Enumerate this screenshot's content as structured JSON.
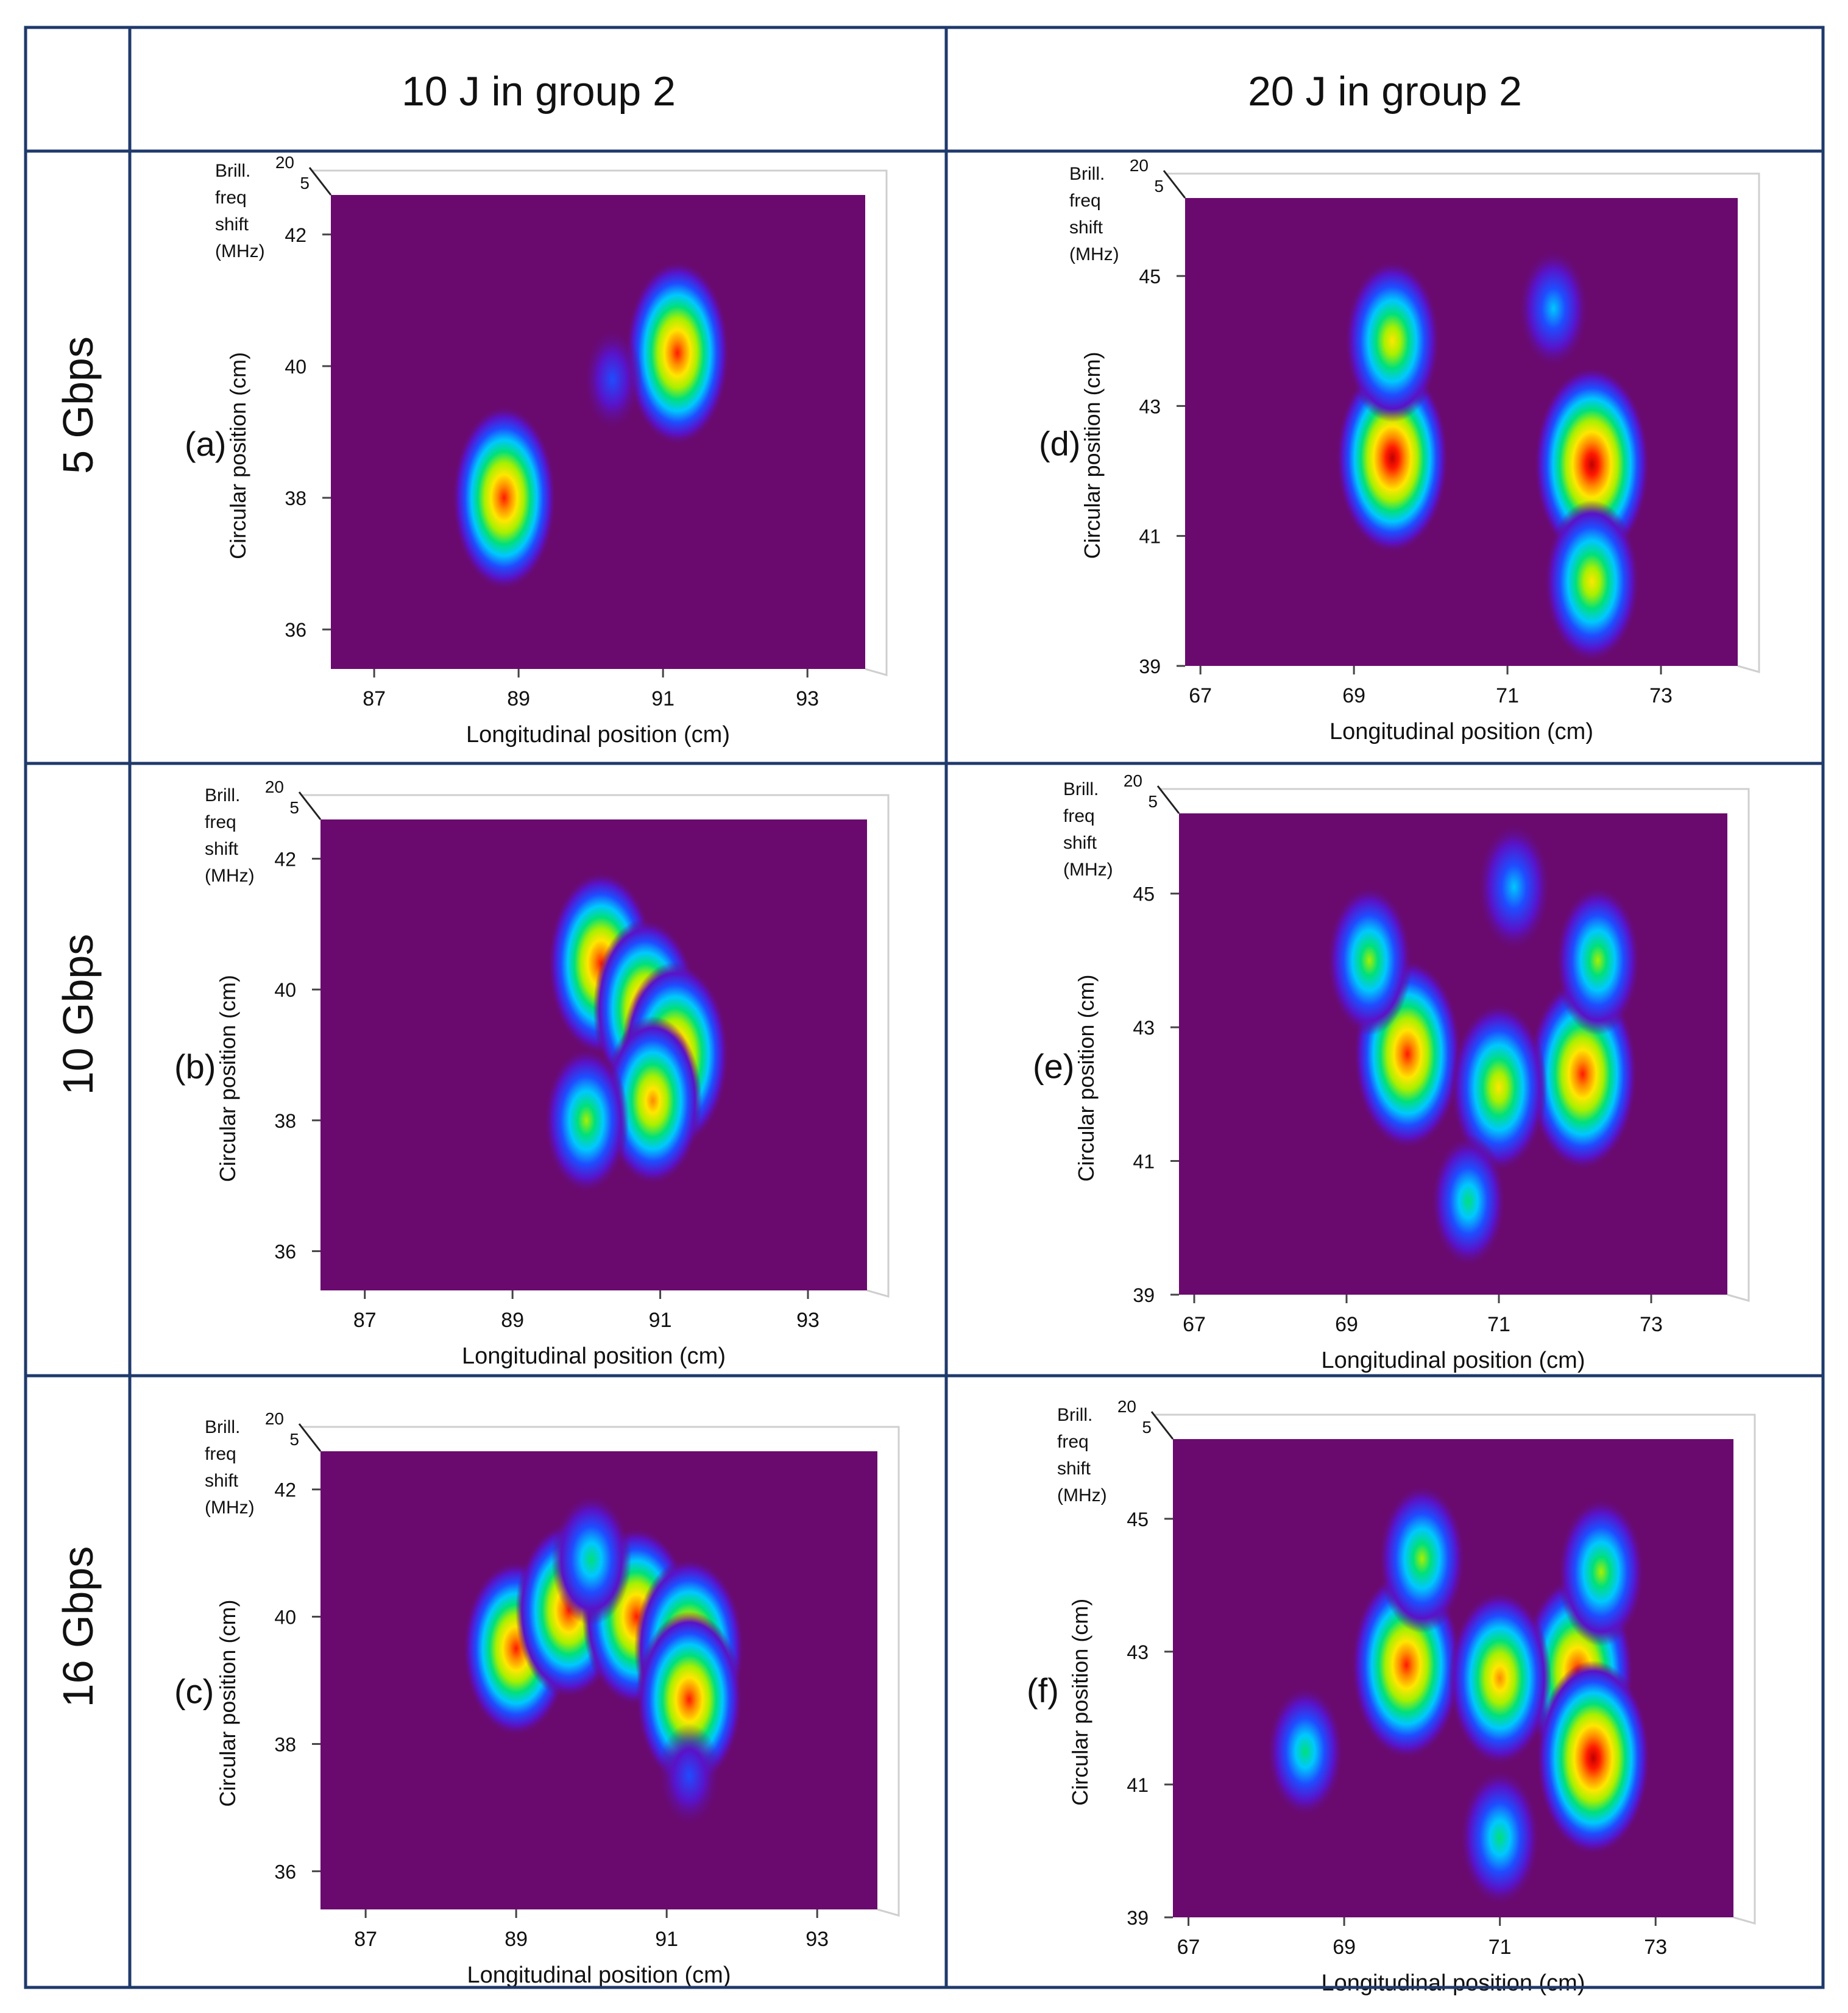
{
  "table": {
    "column_headers": [
      "10 J in group 2",
      "20 J in group 2"
    ],
    "row_headers": [
      "5 Gbps",
      "10 Gbps",
      "16 Gbps"
    ]
  },
  "axis_text": {
    "zlabel_lines": [
      "Brill.",
      "freq",
      "shift",
      "(MHz)"
    ],
    "z_ticks": [
      "20",
      "5"
    ],
    "ylabel": "Circular position (cm)",
    "xlabel": "Longitudinal position (cm)"
  },
  "colors": {
    "grid": "#1f3a6b",
    "background_level": "#6a0a6e",
    "colormap": [
      "#6a0a6e",
      "#5a12c8",
      "#1f4cff",
      "#00c8ff",
      "#00e07a",
      "#a8f000",
      "#ffe600",
      "#ff8a00",
      "#ff1a00",
      "#c00000"
    ]
  },
  "chart_data": [
    {
      "type": "heatmap",
      "label": "(a)",
      "x_ticks": [
        87,
        89,
        91,
        93
      ],
      "xlim": [
        86.4,
        93.8
      ],
      "y_ticks": [
        36,
        38,
        40,
        42
      ],
      "ylim": [
        35.4,
        42.6
      ],
      "hotspots": [
        {
          "x": 88.8,
          "y": 38.0,
          "peak": 0.88
        },
        {
          "x": 91.2,
          "y": 40.2,
          "peak": 0.88
        },
        {
          "x": 90.3,
          "y": 39.8,
          "peak": 0.18
        }
      ]
    },
    {
      "type": "heatmap",
      "label": "(b)",
      "x_ticks": [
        87,
        89,
        91,
        93
      ],
      "xlim": [
        86.4,
        93.8
      ],
      "y_ticks": [
        36,
        38,
        40,
        42
      ],
      "ylim": [
        35.4,
        42.6
      ],
      "hotspots": [
        {
          "x": 90.2,
          "y": 40.4,
          "peak": 0.88
        },
        {
          "x": 90.8,
          "y": 39.7,
          "peak": 0.85
        },
        {
          "x": 91.2,
          "y": 39.0,
          "peak": 0.9
        },
        {
          "x": 90.9,
          "y": 38.3,
          "peak": 0.75
        },
        {
          "x": 90.0,
          "y": 38.0,
          "peak": 0.55
        }
      ]
    },
    {
      "type": "heatmap",
      "label": "(c)",
      "x_ticks": [
        87,
        89,
        91,
        93
      ],
      "xlim": [
        86.4,
        93.8
      ],
      "y_ticks": [
        36,
        38,
        40,
        42
      ],
      "ylim": [
        35.4,
        42.6
      ],
      "hotspots": [
        {
          "x": 89.0,
          "y": 39.5,
          "peak": 0.85
        },
        {
          "x": 89.7,
          "y": 40.1,
          "peak": 0.85
        },
        {
          "x": 90.6,
          "y": 40.0,
          "peak": 0.88
        },
        {
          "x": 91.3,
          "y": 39.5,
          "peak": 0.9
        },
        {
          "x": 91.3,
          "y": 38.7,
          "peak": 0.85
        },
        {
          "x": 90.0,
          "y": 40.9,
          "peak": 0.45
        },
        {
          "x": 91.3,
          "y": 37.5,
          "peak": 0.2
        }
      ]
    },
    {
      "type": "heatmap",
      "label": "(d)",
      "x_ticks": [
        67,
        69,
        71,
        73
      ],
      "xlim": [
        66.8,
        74.0
      ],
      "y_ticks": [
        39,
        41,
        43,
        45
      ],
      "ylim": [
        39.0,
        46.2
      ],
      "hotspots": [
        {
          "x": 69.5,
          "y": 42.2,
          "peak": 0.95
        },
        {
          "x": 72.1,
          "y": 42.1,
          "peak": 1.0
        },
        {
          "x": 69.5,
          "y": 44.0,
          "peak": 0.7
        },
        {
          "x": 72.1,
          "y": 40.3,
          "peak": 0.7
        },
        {
          "x": 71.6,
          "y": 44.5,
          "peak": 0.32
        }
      ]
    },
    {
      "type": "heatmap",
      "label": "(e)",
      "x_ticks": [
        67,
        69,
        71,
        73
      ],
      "xlim": [
        66.8,
        74.0
      ],
      "y_ticks": [
        39,
        41,
        43,
        45
      ],
      "ylim": [
        39.0,
        46.2
      ],
      "hotspots": [
        {
          "x": 69.8,
          "y": 42.6,
          "peak": 0.9
        },
        {
          "x": 72.1,
          "y": 42.3,
          "peak": 0.92
        },
        {
          "x": 71.0,
          "y": 42.1,
          "peak": 0.72
        },
        {
          "x": 69.3,
          "y": 44.0,
          "peak": 0.55
        },
        {
          "x": 72.3,
          "y": 44.0,
          "peak": 0.55
        },
        {
          "x": 70.6,
          "y": 40.4,
          "peak": 0.4
        },
        {
          "x": 71.2,
          "y": 45.1,
          "peak": 0.38
        }
      ]
    },
    {
      "type": "heatmap",
      "label": "(f)",
      "x_ticks": [
        67,
        69,
        71,
        73
      ],
      "xlim": [
        66.8,
        74.0
      ],
      "y_ticks": [
        39,
        41,
        43,
        45
      ],
      "ylim": [
        39.0,
        46.2
      ],
      "hotspots": [
        {
          "x": 69.8,
          "y": 42.8,
          "peak": 0.9
        },
        {
          "x": 72.0,
          "y": 42.7,
          "peak": 0.92
        },
        {
          "x": 72.2,
          "y": 41.4,
          "peak": 0.95
        },
        {
          "x": 71.0,
          "y": 42.6,
          "peak": 0.78
        },
        {
          "x": 70.0,
          "y": 44.4,
          "peak": 0.55
        },
        {
          "x": 72.3,
          "y": 44.2,
          "peak": 0.55
        },
        {
          "x": 71.0,
          "y": 40.2,
          "peak": 0.45
        },
        {
          "x": 68.5,
          "y": 41.5,
          "peak": 0.4
        }
      ]
    }
  ]
}
